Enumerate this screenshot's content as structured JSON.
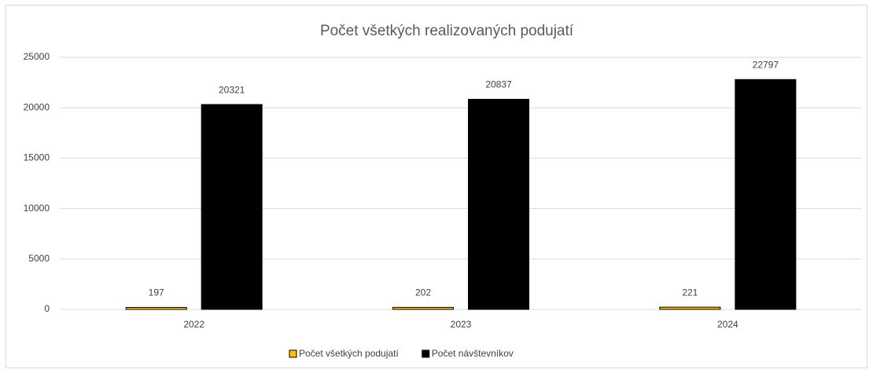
{
  "chart_data": {
    "type": "bar",
    "title": "Počet všetkých realizovaných podujatí",
    "categories": [
      "2022",
      "2023",
      "2024"
    ],
    "series": [
      {
        "name": "Počet všetkých podujatí",
        "color": "#ffc000",
        "values": [
          197,
          202,
          221
        ]
      },
      {
        "name": "Počet návštevníkov",
        "color": "#000000",
        "values": [
          20321,
          20837,
          22797
        ]
      }
    ],
    "ylim": [
      0,
      25000
    ],
    "yticks": [
      0,
      5000,
      10000,
      15000,
      20000,
      25000
    ],
    "grid": true,
    "legend": "bottom"
  }
}
